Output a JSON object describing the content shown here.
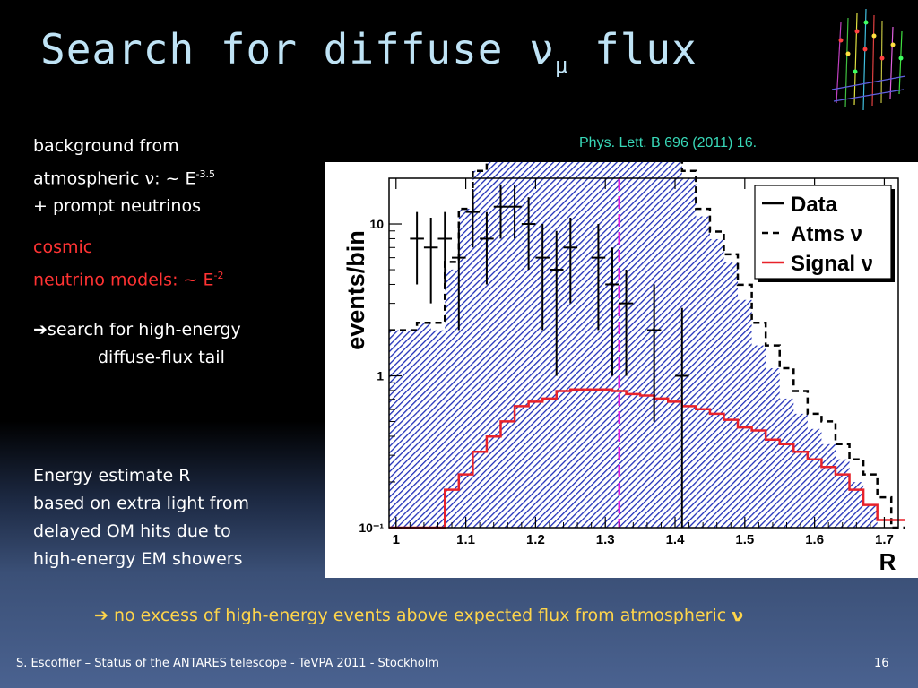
{
  "slide": {
    "title_main": "Search for diffuse ν",
    "title_sub": "μ",
    "title_tail": " flux",
    "bg_line1": "background from",
    "bg_line2": "atmospheric ν: ~ E",
    "bg_exp": "-3.5",
    "bg_line3": "+ prompt neutrinos",
    "cosmic_line1": "cosmic",
    "cosmic_line2": "neutrino models:   ~ E",
    "cosmic_exp": "-2",
    "arrow1": "➔",
    "search_line1": "search for high-energy",
    "search_line2": "diffuse-flux tail",
    "energy_line1": "Energy estimate R",
    "energy_line2": "based on extra light from",
    "energy_line3": "delayed OM hits due to",
    "energy_line4": "high-energy EM showers",
    "citation": "Phys. Lett. B 696 (2011) 16.",
    "arrow2": "➔",
    "conclusion": " no excess of high-energy events above expected flux from atmospheric ",
    "conclusion_nu": "ν",
    "footer": "S. Escoffier – Status of the ANTARES telescope - TeVPA 2011 - Stockholm",
    "page_number": "16"
  },
  "colors": {
    "title": "#bfe3f5",
    "red_text": "#ff3333",
    "citation": "#38d8b8",
    "hist_fill": "#1f2fb8",
    "signal": "#e8222a",
    "cut_line": "#e020e0"
  },
  "chart_data": {
    "type": "bar",
    "ylabel": "events/bin",
    "xlabel": "R",
    "xlim": [
      0.99,
      1.72
    ],
    "ylim": [
      0.1,
      20
    ],
    "yscale": "log",
    "x_ticks": [
      "1",
      "1.1",
      "1.2",
      "1.3",
      "1.4",
      "1.5",
      "1.6",
      "1.7"
    ],
    "y_ticks": [
      "10⁻¹",
      "1",
      "10"
    ],
    "cut_value": 1.32,
    "legend": [
      "Data",
      "Atms ν",
      "Signal ν"
    ],
    "legend_position": "top-right",
    "bin_width": 0.02,
    "bin_edges_start": 0.99,
    "atms_filled": [
      0.3,
      0.3,
      0.35,
      0.3,
      0.7,
      1.1,
      1.35,
      1.45,
      1.55,
      1.7,
      1.8,
      1.85,
      1.9,
      1.95,
      1.95,
      1.85,
      1.8,
      1.7,
      1.75,
      1.6,
      1.55,
      1.3,
      1.05,
      0.9,
      0.75,
      0.5,
      0.2,
      0.05,
      -0.15,
      -0.25,
      -0.35,
      -0.45,
      -0.55,
      -0.7,
      -0.85,
      -1.0,
      -1.0
    ],
    "atms_dashed": [
      0.3,
      0.3,
      0.35,
      0.35,
      0.75,
      1.1,
      1.35,
      1.45,
      1.5,
      1.7,
      1.85,
      1.9,
      1.95,
      2.0,
      2.0,
      1.85,
      1.75,
      1.7,
      1.8,
      1.65,
      1.6,
      1.35,
      1.1,
      0.95,
      0.8,
      0.6,
      0.35,
      0.2,
      0.05,
      -0.1,
      -0.25,
      -0.3,
      -0.45,
      -0.55,
      -0.65,
      -0.8,
      -1.0
    ],
    "signal": [
      -1.0,
      -1.0,
      -1.0,
      -1.0,
      -0.75,
      -0.65,
      -0.5,
      -0.4,
      -0.3,
      -0.2,
      -0.17,
      -0.15,
      -0.1,
      -0.09,
      -0.09,
      -0.09,
      -0.1,
      -0.12,
      -0.13,
      -0.15,
      -0.17,
      -0.2,
      -0.22,
      -0.25,
      -0.29,
      -0.34,
      -0.36,
      -0.42,
      -0.45,
      -0.5,
      -0.55,
      -0.6,
      -0.65,
      -0.75,
      -0.85,
      -0.95,
      -0.95
    ],
    "data_x": [
      1.03,
      1.05,
      1.07,
      1.09,
      1.11,
      1.13,
      1.15,
      1.17,
      1.19,
      1.21,
      1.23,
      1.25,
      1.29,
      1.31,
      1.33,
      1.37,
      1.41
    ],
    "data_y": [
      8,
      7,
      8,
      6,
      12,
      8,
      13,
      13,
      10,
      6,
      5,
      7,
      6,
      4,
      3,
      2,
      1
    ],
    "data_err_lo": [
      4,
      4,
      4,
      4,
      5,
      4,
      5,
      5,
      5,
      4,
      4,
      4,
      4,
      3,
      2,
      1.5,
      0.9
    ],
    "data_err_hi": [
      4,
      4,
      4,
      4,
      5,
      4,
      5,
      5,
      5,
      4,
      4,
      4,
      4,
      3,
      2,
      2,
      1.8
    ]
  }
}
